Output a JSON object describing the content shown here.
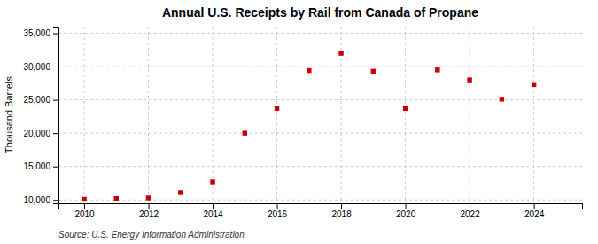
{
  "chart_data": {
    "type": "scatter",
    "title": "Annual U.S. Receipts by Rail from Canada of Propane",
    "ylabel": "Thousand Barrels",
    "source": "Source: U.S. Energy Information Administration",
    "x": [
      2010,
      2011,
      2012,
      2013,
      2014,
      2015,
      2016,
      2017,
      2018,
      2019,
      2020,
      2021,
      2022,
      2023,
      2024
    ],
    "values": [
      10100,
      10200,
      10300,
      11100,
      12700,
      20000,
      23700,
      29400,
      32000,
      29300,
      23700,
      29500,
      28000,
      25100,
      27300
    ],
    "color": "#cc0000",
    "marker": "square",
    "xlim": [
      2009.2,
      2025.5
    ],
    "xticks": [
      2010,
      2012,
      2014,
      2016,
      2018,
      2020,
      2022,
      2024
    ],
    "ylim": [
      9500,
      36000
    ],
    "yticks": [
      {
        "value": 10000,
        "label": "10,000"
      },
      {
        "value": 15000,
        "label": "15,000"
      },
      {
        "value": 20000,
        "label": "20,000"
      },
      {
        "value": 25000,
        "label": "25,000"
      },
      {
        "value": 30000,
        "label": "30,000"
      },
      {
        "value": 35000,
        "label": "35,000"
      }
    ],
    "grid": true
  }
}
